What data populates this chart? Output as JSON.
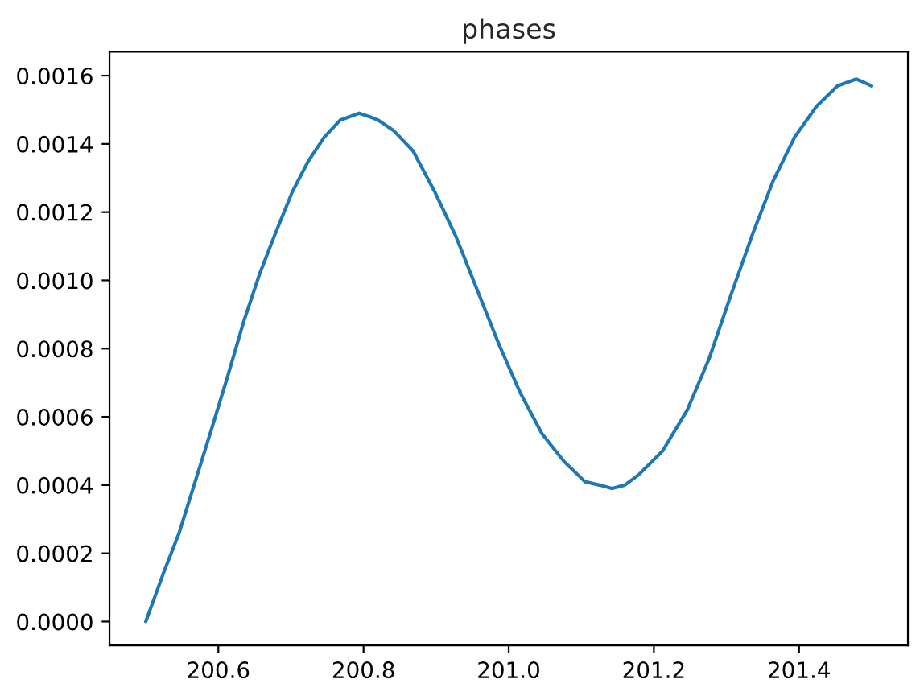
{
  "chart_data": {
    "type": "line",
    "title": "phases",
    "x": [
      200.5,
      200.524,
      200.546,
      200.568,
      200.59,
      200.613,
      200.635,
      200.657,
      200.679,
      200.702,
      200.724,
      200.746,
      200.768,
      200.781,
      200.794,
      200.808,
      200.82,
      200.841,
      200.868,
      200.898,
      200.927,
      200.957,
      200.987,
      201.016,
      201.046,
      201.076,
      201.105,
      201.125,
      201.142,
      201.16,
      201.179,
      201.212,
      201.246,
      201.276,
      201.305,
      201.335,
      201.364,
      201.394,
      201.424,
      201.453,
      201.466,
      201.479,
      201.49,
      201.5
    ],
    "series": [
      {
        "color": "#1f77b4",
        "values": [
          0,
          0.00014,
          0.00026,
          0.00041,
          0.00056,
          0.00072,
          0.00088,
          0.00102,
          0.00114,
          0.00126,
          0.00135,
          0.00142,
          0.00147,
          0.00148,
          0.00149,
          0.00148,
          0.00147,
          0.00144,
          0.00138,
          0.00126,
          0.00113,
          0.00097,
          0.00081,
          0.00067,
          0.00055,
          0.00047,
          0.00041,
          0.0004,
          0.00039,
          0.0004,
          0.00043,
          0.0005,
          0.00062,
          0.00077,
          0.00095,
          0.00113,
          0.00129,
          0.00142,
          0.00151,
          0.00157,
          0.00158,
          0.00159,
          0.00158,
          0.00157
        ]
      }
    ],
    "xlim": [
      200.45,
      201.55
    ],
    "xticks": [
      200.6,
      200.8,
      {
        "value": 201,
        "label": "201.0"
      },
      201.2,
      201.4
    ],
    "ylim": [
      -7e-05,
      0.00167
    ],
    "yticks": [
      {
        "value": 0,
        "label": "0.0000"
      },
      {
        "value": 0.0002,
        "label": "0.0002"
      },
      {
        "value": 0.0004,
        "label": "0.0004"
      },
      {
        "value": 0.0006,
        "label": "0.0006"
      },
      {
        "value": 0.0008,
        "label": "0.0008"
      },
      {
        "value": 0.001,
        "label": "0.0010"
      },
      {
        "value": 0.0012,
        "label": "0.0012"
      },
      {
        "value": 0.0014,
        "label": "0.0014"
      },
      {
        "value": 0.0016,
        "label": "0.0016"
      }
    ]
  }
}
